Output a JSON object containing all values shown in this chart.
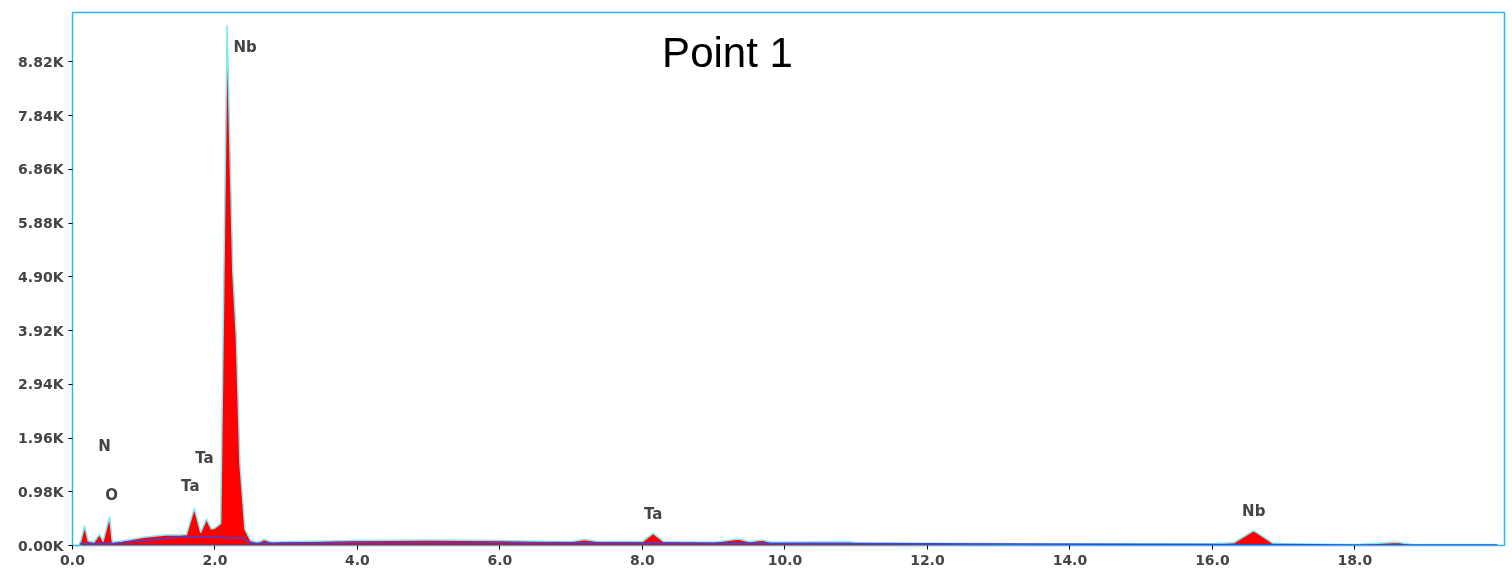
{
  "chart_data": {
    "type": "area",
    "title": "Point 1",
    "x": [
      0.1,
      0.17,
      0.22,
      0.3,
      0.38,
      0.43,
      0.52,
      0.56,
      0.7,
      1.0,
      1.3,
      1.5,
      1.6,
      1.71,
      1.8,
      1.88,
      1.95,
      2.0,
      2.08,
      2.17,
      2.25,
      2.3,
      2.35,
      2.42,
      2.5,
      2.6,
      2.69,
      2.8,
      3.0,
      4.0,
      5.0,
      6.0,
      7.0,
      7.18,
      7.4,
      8.0,
      8.15,
      8.3,
      9.0,
      9.35,
      9.5,
      9.68,
      9.8,
      10.9,
      11.0,
      12.0,
      14.0,
      16.0,
      16.3,
      16.58,
      16.85,
      17.0,
      18.0,
      18.6,
      18.8,
      20.0
    ],
    "series": [
      {
        "color": "#ff0000",
        "values": [
          0,
          350,
          80,
          60,
          200,
          80,
          520,
          60,
          80,
          150,
          190,
          190,
          200,
          680,
          240,
          480,
          300,
          320,
          400,
          9480,
          5000,
          3800,
          1500,
          300,
          90,
          50,
          110,
          60,
          70,
          90,
          100,
          90,
          70,
          110,
          70,
          70,
          220,
          70,
          60,
          120,
          70,
          100,
          60,
          70,
          50,
          40,
          30,
          30,
          50,
          270,
          40,
          30,
          20,
          60,
          20,
          20
        ]
      },
      {
        "type": "line",
        "color": "#4b3fd6",
        "x": [
          0.1,
          0.6,
          1.5,
          2.0,
          2.4,
          2.5,
          4.0,
          8.0,
          12.0,
          16.0,
          18.0,
          20.0
        ],
        "values": [
          30,
          40,
          150,
          150,
          130,
          40,
          60,
          50,
          30,
          20,
          10,
          10
        ]
      }
    ],
    "annotations": [
      "N",
      {
        "text": "O",
        "x": 0.52,
        "y": 520
      },
      "Ta",
      {
        "text": "Ta",
        "x": 1.71,
        "y": 680
      },
      {
        "text": "Nb",
        "x": 2.17,
        "y": 9480
      },
      {
        "text": "Ta",
        "x": 8.15,
        "y": 220
      },
      {
        "text": "Nb",
        "x": 16.58,
        "y": 270
      }
    ],
    "xlim": [
      0,
      20.1
    ],
    "ylim": [
      0,
      9720
    ],
    "xticks": [
      {
        "value": 0,
        "label": "0.0"
      },
      {
        "value": 2,
        "label": "2.0"
      },
      {
        "value": 4,
        "label": "4.0"
      },
      {
        "value": 6,
        "label": "6.0"
      },
      {
        "value": 8,
        "label": "8.0"
      },
      {
        "value": 10,
        "label": "10.0"
      },
      {
        "value": 12,
        "label": "12.0"
      },
      {
        "value": 14,
        "label": "14.0"
      },
      {
        "value": 16,
        "label": "16.0"
      },
      {
        "value": 18,
        "label": "18.0"
      }
    ],
    "yticks": [
      {
        "value": 0,
        "label": "0.00K"
      },
      {
        "value": 980,
        "label": "0.98K"
      },
      {
        "value": 1960,
        "label": "1.96K"
      },
      {
        "value": 2940,
        "label": "2.94K"
      },
      {
        "value": 3920,
        "label": "3.92K"
      },
      {
        "value": 4900,
        "label": "4.90K"
      },
      {
        "value": 5880,
        "label": "5.88K"
      },
      {
        "value": 6860,
        "label": "6.86K"
      },
      {
        "value": 7840,
        "label": "7.84K"
      },
      {
        "value": 8820,
        "label": "8.82K"
      }
    ],
    "grid": false
  }
}
